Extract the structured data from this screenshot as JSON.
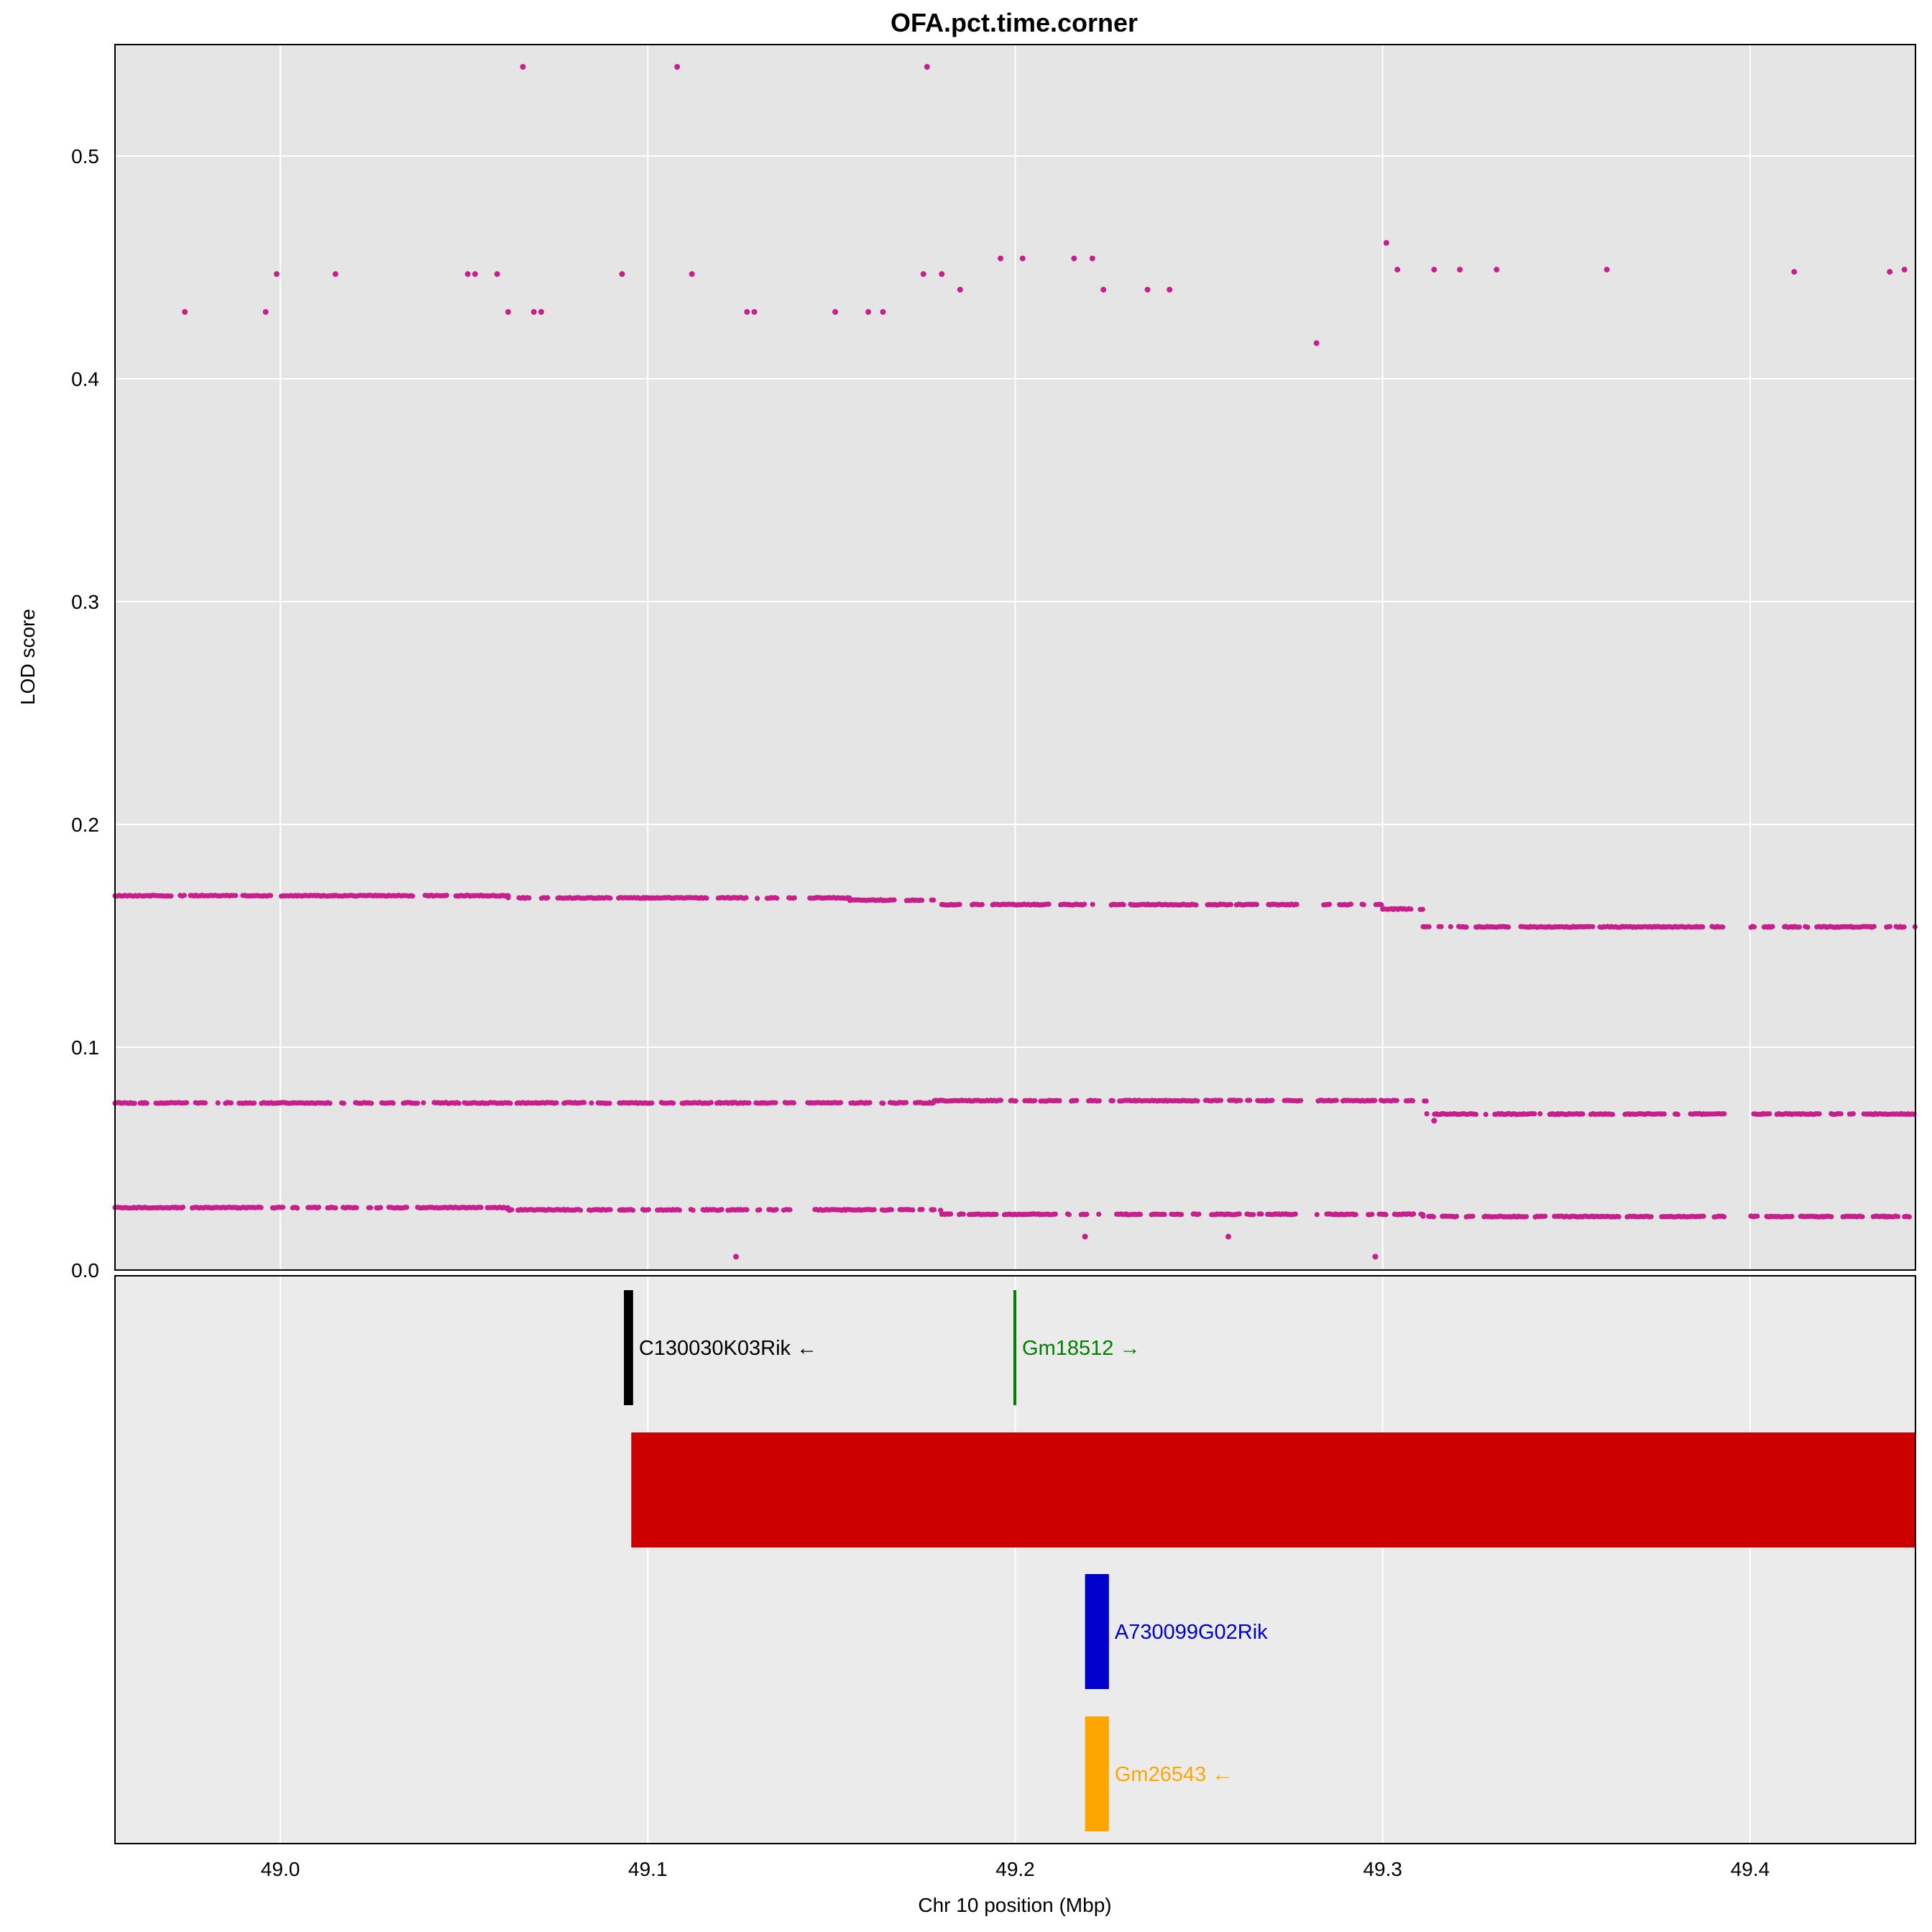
{
  "chart_data": {
    "type": "scatter",
    "title": "OFA.pct.time.corner",
    "xlabel": "Chr 10 position (Mbp)",
    "ylabel": "LOD score",
    "xlim": [
      48.955,
      49.445
    ],
    "ylim": [
      0,
      0.55
    ],
    "x_ticks": [
      49.0,
      49.1,
      49.2,
      49.3,
      49.4
    ],
    "x_tick_labels": [
      "49.0",
      "49.1",
      "49.2",
      "49.3",
      "49.4"
    ],
    "y_ticks": [
      0,
      0.1,
      0.2,
      0.3,
      0.4,
      0.5
    ],
    "y_tick_labels": [
      "0.0",
      "0.1",
      "0.2",
      "0.3",
      "0.4",
      "0.5"
    ],
    "grid": true,
    "point_color": "#c71f8c",
    "panel_background": "#e5e5e5",
    "gene_panel_background": "#ebebeb",
    "bands": [
      {
        "name": "",
        "segments": [
          {
            "x0": 48.955,
            "x1": 49.062,
            "y": 0.168
          },
          {
            "x0": 49.062,
            "x1": 49.155,
            "y": 0.167
          },
          {
            "x0": 49.155,
            "x1": 49.18,
            "y": 0.166
          },
          {
            "x0": 49.18,
            "x1": 49.3,
            "y": 0.164
          },
          {
            "x0": 49.3,
            "x1": 49.311,
            "y": 0.162
          },
          {
            "x0": 49.311,
            "x1": 49.445,
            "y": 0.154
          }
        ]
      },
      {
        "name": "",
        "segments": [
          {
            "x0": 48.955,
            "x1": 49.178,
            "y": 0.075
          },
          {
            "x0": 49.178,
            "x1": 49.312,
            "y": 0.076
          },
          {
            "x0": 49.312,
            "x1": 49.445,
            "y": 0.07
          }
        ]
      },
      {
        "name": "",
        "segments": [
          {
            "x0": 48.955,
            "x1": 49.062,
            "y": 0.028
          },
          {
            "x0": 49.062,
            "x1": 49.155,
            "y": 0.027
          },
          {
            "x0": 49.155,
            "x1": 49.18,
            "y": 0.027
          },
          {
            "x0": 49.18,
            "x1": 49.311,
            "y": 0.025
          },
          {
            "x0": 49.311,
            "x1": 49.445,
            "y": 0.024
          }
        ]
      }
    ],
    "gaps": [
      [
        49.278,
        49.282
      ],
      [
        49.223,
        49.226
      ],
      [
        49.393,
        49.4
      ],
      [
        49.14,
        49.143
      ],
      [
        49.09,
        49.092
      ]
    ],
    "scattered_points": [
      {
        "x": 48.974,
        "y": 0.43
      },
      {
        "x": 48.996,
        "y": 0.43
      },
      {
        "x": 48.999,
        "y": 0.447
      },
      {
        "x": 49.015,
        "y": 0.447
      },
      {
        "x": 49.051,
        "y": 0.447
      },
      {
        "x": 49.053,
        "y": 0.447
      },
      {
        "x": 49.059,
        "y": 0.447
      },
      {
        "x": 49.062,
        "y": 0.43
      },
      {
        "x": 49.066,
        "y": 0.54
      },
      {
        "x": 49.069,
        "y": 0.43
      },
      {
        "x": 49.071,
        "y": 0.43
      },
      {
        "x": 49.093,
        "y": 0.447
      },
      {
        "x": 49.108,
        "y": 0.54
      },
      {
        "x": 49.112,
        "y": 0.447
      },
      {
        "x": 49.127,
        "y": 0.43
      },
      {
        "x": 49.129,
        "y": 0.43
      },
      {
        "x": 49.151,
        "y": 0.43
      },
      {
        "x": 49.16,
        "y": 0.43
      },
      {
        "x": 49.164,
        "y": 0.43
      },
      {
        "x": 49.175,
        "y": 0.447
      },
      {
        "x": 49.176,
        "y": 0.54
      },
      {
        "x": 49.18,
        "y": 0.447
      },
      {
        "x": 49.185,
        "y": 0.44
      },
      {
        "x": 49.196,
        "y": 0.454
      },
      {
        "x": 49.202,
        "y": 0.454
      },
      {
        "x": 49.216,
        "y": 0.454
      },
      {
        "x": 49.221,
        "y": 0.454
      },
      {
        "x": 49.224,
        "y": 0.44
      },
      {
        "x": 49.236,
        "y": 0.44
      },
      {
        "x": 49.242,
        "y": 0.44
      },
      {
        "x": 49.282,
        "y": 0.416
      },
      {
        "x": 49.301,
        "y": 0.461
      },
      {
        "x": 49.304,
        "y": 0.449
      },
      {
        "x": 49.314,
        "y": 0.449
      },
      {
        "x": 49.321,
        "y": 0.449
      },
      {
        "x": 49.331,
        "y": 0.449
      },
      {
        "x": 49.361,
        "y": 0.449
      },
      {
        "x": 49.412,
        "y": 0.448
      },
      {
        "x": 49.438,
        "y": 0.448
      },
      {
        "x": 49.442,
        "y": 0.449
      },
      {
        "x": 49.124,
        "y": 0.006
      },
      {
        "x": 49.219,
        "y": 0.015
      },
      {
        "x": 49.258,
        "y": 0.015
      },
      {
        "x": 49.298,
        "y": 0.006
      },
      {
        "x": 49.314,
        "y": 0.067
      }
    ],
    "genes": [
      {
        "label": "C130030K03Rik ←",
        "start": 49.0935,
        "end": 49.096,
        "color": "#000000",
        "row": 0
      },
      {
        "label": "Gm18512 →",
        "start": 49.1995,
        "end": 49.2003,
        "color": "#008000",
        "row": 0
      },
      {
        "label": "",
        "start": 49.0955,
        "end": 49.445,
        "color": "#cc0000",
        "row": 1
      },
      {
        "label": "A730099G02Rik",
        "start": 49.219,
        "end": 49.2255,
        "color": "#0000cc",
        "row": 2
      },
      {
        "label": "Gm26543 ←",
        "start": 49.219,
        "end": 49.2255,
        "color": "#ffa500",
        "row": 3
      }
    ]
  }
}
